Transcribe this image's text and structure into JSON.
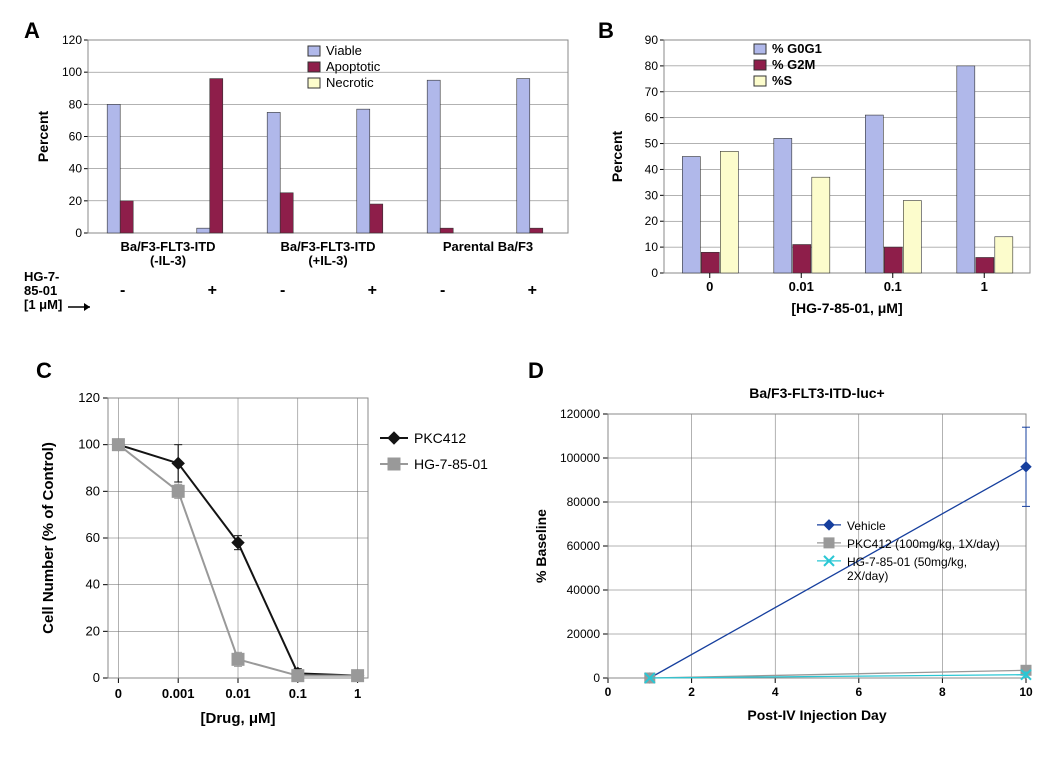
{
  "panels": {
    "A": {
      "label": "A",
      "type": "bar",
      "ylabel": "Percent",
      "ylim": [
        0,
        120
      ],
      "ytick_step": 20,
      "groups": [
        "Ba/F3-FLT3-ITD\n(-IL-3)",
        "Ba/F3-FLT3-ITD\n(+IL-3)",
        "Parental Ba/F3"
      ],
      "conditions": [
        "-",
        "+"
      ],
      "series": [
        {
          "name": "Viable",
          "color": "#b0b8ea",
          "border": "#333"
        },
        {
          "name": "Apoptotic",
          "color": "#8e1e4a",
          "border": "#333"
        },
        {
          "name": "Necrotic",
          "color": "#fcfccc",
          "border": "#333"
        }
      ],
      "data": [
        [
          [
            80,
            20,
            0
          ],
          [
            3,
            96,
            0
          ]
        ],
        [
          [
            75,
            25,
            0
          ],
          [
            77,
            18,
            0
          ]
        ],
        [
          [
            95,
            3,
            0
          ],
          [
            96,
            3,
            0
          ]
        ]
      ],
      "below_left": "HG-7-\n85-01\n[1 μM]",
      "arrow": "→",
      "label_fontsize": 14
    },
    "B": {
      "label": "B",
      "type": "bar",
      "ylabel": "Percent",
      "ylim": [
        0,
        90
      ],
      "ytick_step": 10,
      "xlabel": "[HG-7-85-01, μM]",
      "x_categories": [
        "0",
        "0.01",
        "0.1",
        "1"
      ],
      "series": [
        {
          "name": "% G0G1",
          "color": "#b0b8ea",
          "border": "#333"
        },
        {
          "name": "% G2M",
          "color": "#8e1e4a",
          "border": "#333"
        },
        {
          "name": "%S",
          "color": "#fcfccc",
          "border": "#333"
        }
      ],
      "data": [
        [
          45,
          8,
          47
        ],
        [
          52,
          11,
          37
        ],
        [
          61,
          10,
          28
        ],
        [
          80,
          6,
          14
        ]
      ],
      "label_fontsize": 14
    },
    "C": {
      "label": "C",
      "type": "line",
      "ylabel": "Cell Number (% of Control)",
      "xlabel": "[Drug, μM]",
      "ylim": [
        0,
        120
      ],
      "ytick_step": 20,
      "x_categories": [
        "0",
        "0.001",
        "0.01",
        "0.1",
        "1"
      ],
      "series": [
        {
          "name": "PKC412",
          "color": "#141414",
          "marker": "diamond",
          "marker_fill": "#141414",
          "line_width": 2,
          "err": [
            2,
            8,
            3,
            2,
            2
          ],
          "values": [
            100,
            92,
            58,
            2,
            1
          ]
        },
        {
          "name": "HG-7-85-01",
          "color": "#999999",
          "marker": "square",
          "marker_fill": "#999999",
          "line_width": 2,
          "err": [
            2,
            3,
            3,
            2,
            2
          ],
          "values": [
            100,
            80,
            8,
            1,
            1
          ]
        }
      ],
      "label_fontsize": 14
    },
    "D": {
      "label": "D",
      "type": "line",
      "title": "Ba/F3-FLT3-ITD-luc+",
      "ylabel": "% Baseline",
      "xlabel": "Post-IV Injection Day",
      "ylim": [
        0,
        120000
      ],
      "ytick_step": 20000,
      "x_ticks": [
        0,
        2,
        4,
        6,
        8,
        10
      ],
      "series": [
        {
          "name": "Vehicle",
          "color": "#163f9e",
          "marker": "diamond",
          "marker_fill": "#163f9e",
          "line_width": 1.3,
          "points": [
            [
              1,
              0
            ],
            [
              10,
              96000
            ]
          ],
          "err": [
            [
              1,
              0
            ],
            [
              10,
              18000
            ]
          ]
        },
        {
          "name": "PKC412 (100mg/kg, 1X/day)",
          "color": "#999999",
          "marker": "square",
          "marker_fill": "#999999",
          "line_width": 1.3,
          "points": [
            [
              1,
              0
            ],
            [
              10,
              3500
            ]
          ],
          "err": [
            [
              1,
              0
            ],
            [
              10,
              1800
            ]
          ]
        },
        {
          "name": "HG-7-85-01 (50mg/kg,\n 2X/day)",
          "color": "#2ac7d4",
          "marker": "x",
          "marker_fill": "#2ac7d4",
          "line_width": 1.3,
          "points": [
            [
              1,
              0
            ],
            [
              10,
              1500
            ]
          ],
          "err": [
            [
              1,
              0
            ],
            [
              10,
              1200
            ]
          ]
        }
      ],
      "label_fontsize": 14,
      "title_fontsize": 14
    }
  },
  "global": {
    "grid_color": "#666666",
    "axis_color": "#000000",
    "background_color": "#ffffff",
    "font_family": "Arial"
  }
}
